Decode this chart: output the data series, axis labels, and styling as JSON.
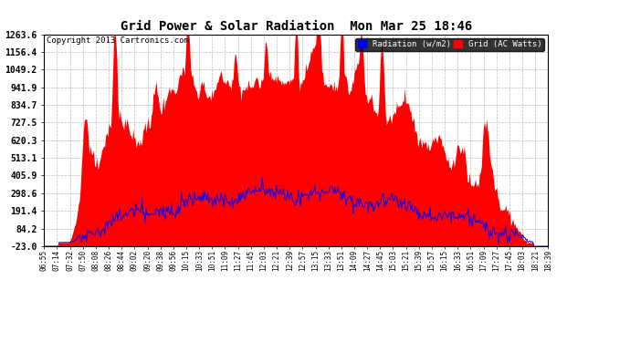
{
  "title": "Grid Power & Solar Radiation  Mon Mar 25 18:46",
  "copyright": "Copyright 2013 Cartronics.com",
  "yticks": [
    -23.0,
    84.2,
    191.4,
    298.6,
    405.9,
    513.1,
    620.3,
    727.5,
    834.7,
    941.9,
    1049.2,
    1156.4,
    1263.6
  ],
  "ymin": -23.0,
  "ymax": 1263.6,
  "background_color": "#ffffff",
  "grid_color": "#bbbbbb",
  "red_color": "#ff0000",
  "blue_color": "#0000ff",
  "legend_radiation_label": "Radiation (w/m2)",
  "legend_grid_label": "Grid (AC Watts)",
  "xtick_labels": [
    "06:55",
    "07:14",
    "07:32",
    "07:50",
    "08:08",
    "08:26",
    "08:44",
    "09:02",
    "09:20",
    "09:38",
    "09:56",
    "10:15",
    "10:33",
    "10:51",
    "11:09",
    "11:27",
    "11:45",
    "12:03",
    "12:21",
    "12:39",
    "12:57",
    "13:15",
    "13:33",
    "13:51",
    "14:09",
    "14:27",
    "14:45",
    "15:03",
    "15:21",
    "15:39",
    "15:57",
    "16:15",
    "16:33",
    "16:51",
    "17:09",
    "17:27",
    "17:45",
    "18:03",
    "18:21",
    "18:39"
  ],
  "num_points": 500,
  "title_fontsize": 10,
  "copyright_fontsize": 6.5,
  "ytick_fontsize": 7,
  "xtick_fontsize": 5.5
}
